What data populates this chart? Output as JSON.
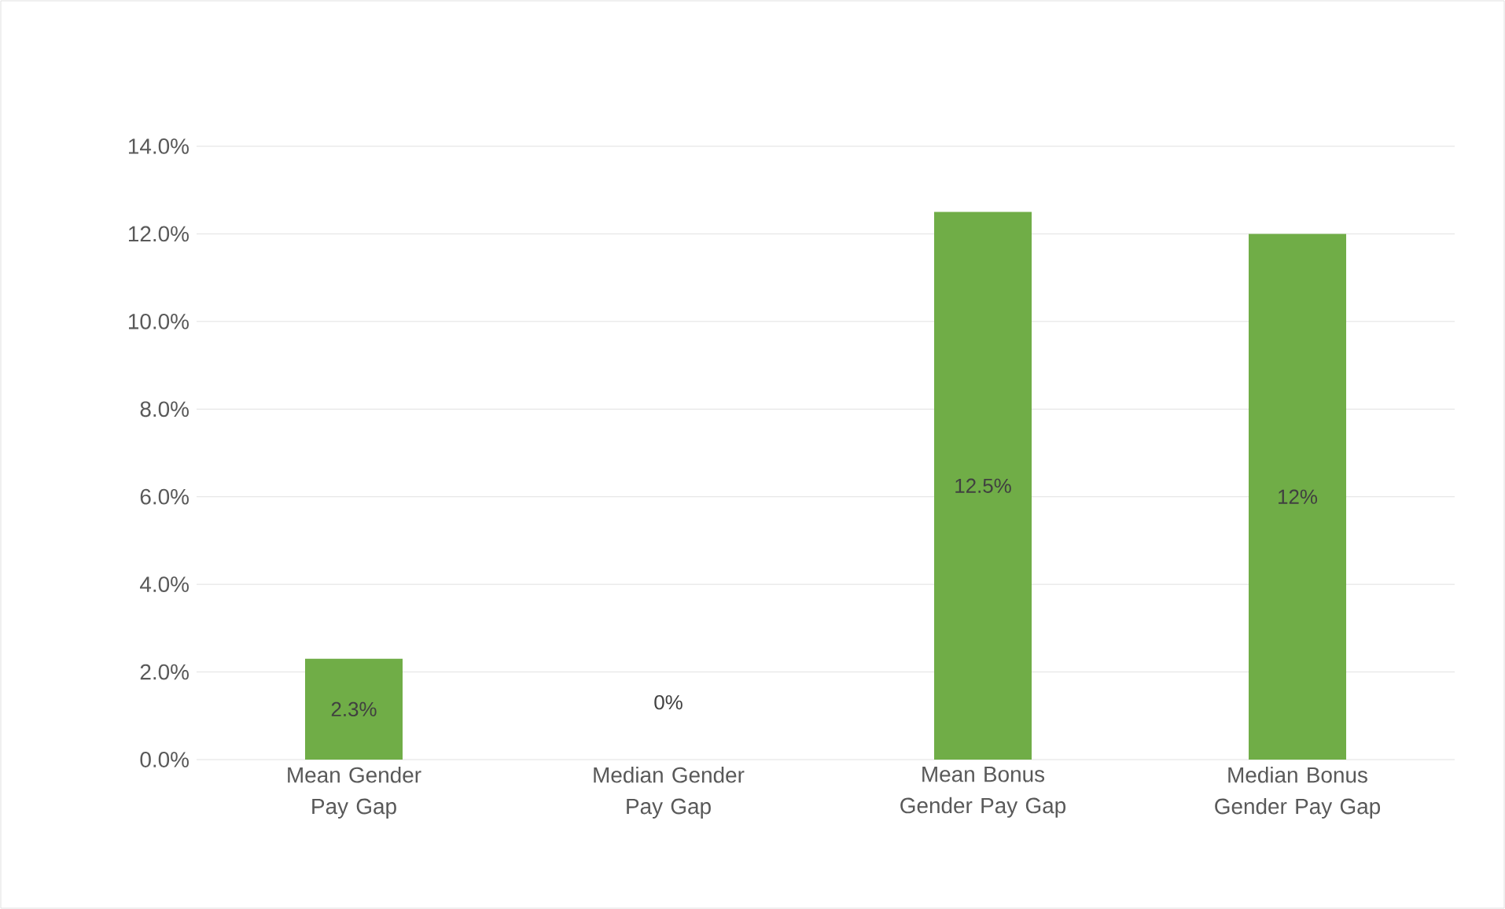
{
  "chart_data": {
    "type": "bar",
    "categories": [
      "Mean Gender Pay Gap",
      "Median Gender Pay Gap",
      "Mean Bonus Gender Pay Gap",
      "Median Bonus Gender Pay Gap"
    ],
    "values": [
      2.3,
      0,
      12.5,
      12
    ],
    "value_labels": [
      "2.3%",
      "0%",
      "12.5%",
      "12%"
    ],
    "color": "#70ad47",
    "ylim": [
      0,
      14
    ],
    "yticks": [
      {
        "value": 0,
        "label": "0.0%"
      },
      {
        "value": 2,
        "label": "2.0%"
      },
      {
        "value": 4,
        "label": "4.0%"
      },
      {
        "value": 6,
        "label": "6.0%"
      },
      {
        "value": 8,
        "label": "8.0%"
      },
      {
        "value": 10,
        "label": "10.0%"
      },
      {
        "value": 12,
        "label": "12.0%"
      },
      {
        "value": 14,
        "label": "14.0%"
      }
    ],
    "grid": "y"
  }
}
